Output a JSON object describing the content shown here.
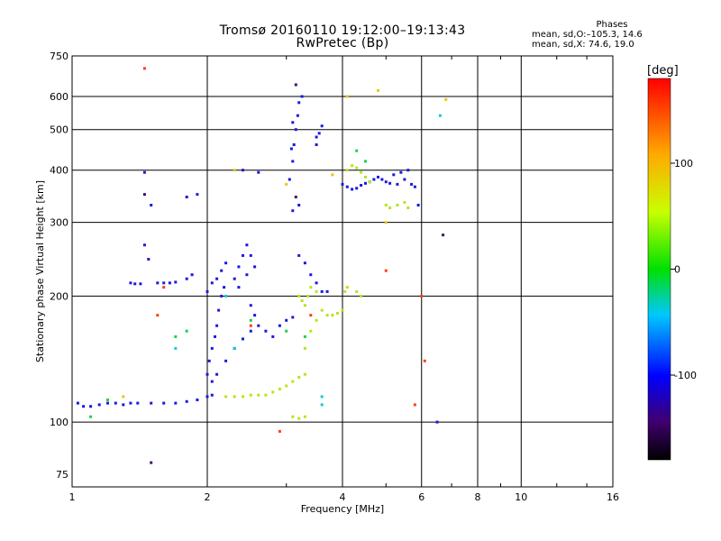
{
  "header": {
    "title": "Tromsø 20160110 19:12:00–19:13:43",
    "subtitle": "RwPretec (Bp)",
    "stats_title": "Phases",
    "stats_o": "mean, sd,O:–105.3, 14.6",
    "stats_x": "mean, sd,X: 74.6, 19.0"
  },
  "chart_data": {
    "type": "scatter",
    "xlabel": "Frequency [MHz]",
    "ylabel": "Stationary phase Virtual Height [km]",
    "xscale": "log",
    "yscale": "log",
    "xlim": [
      1,
      16
    ],
    "ylim": [
      70,
      750
    ],
    "x_ticks": [
      1,
      2,
      4,
      6,
      8,
      10,
      16
    ],
    "x_tick_labels": [
      "1",
      "2",
      "4",
      "6",
      "8",
      "10",
      "16"
    ],
    "y_ticks": [
      75,
      100,
      200,
      300,
      400,
      500,
      600,
      750
    ],
    "y_tick_labels": [
      "75",
      "100",
      "200",
      "300",
      "400",
      "500",
      "600",
      "750"
    ],
    "grid": true,
    "colorbar": {
      "label": "[deg]",
      "ticks": [
        100,
        0,
        -100
      ],
      "tick_labels": [
        "100",
        "0",
        "-100"
      ],
      "range": [
        -180,
        180
      ]
    },
    "series": [
      {
        "phase": -120,
        "color": "#1a1adf",
        "points": [
          [
            1.03,
            111
          ],
          [
            1.06,
            109
          ],
          [
            1.1,
            109
          ],
          [
            1.15,
            110
          ],
          [
            1.2,
            111
          ],
          [
            1.25,
            111
          ],
          [
            1.3,
            110
          ],
          [
            1.35,
            111
          ],
          [
            1.4,
            111
          ],
          [
            1.5,
            111
          ],
          [
            1.6,
            111
          ],
          [
            1.7,
            111
          ],
          [
            1.8,
            112
          ],
          [
            1.9,
            113
          ],
          [
            2.0,
            115
          ],
          [
            2.05,
            116
          ],
          [
            1.35,
            215
          ],
          [
            1.38,
            214
          ],
          [
            1.42,
            214
          ],
          [
            1.55,
            215
          ],
          [
            1.6,
            215
          ],
          [
            1.65,
            215
          ],
          [
            1.7,
            216
          ],
          [
            1.8,
            220
          ],
          [
            1.85,
            225
          ],
          [
            2.0,
            130
          ],
          [
            2.02,
            140
          ],
          [
            2.05,
            150
          ],
          [
            2.08,
            160
          ],
          [
            2.1,
            170
          ],
          [
            2.12,
            185
          ],
          [
            2.15,
            200
          ],
          [
            2.18,
            210
          ],
          [
            2.1,
            220
          ],
          [
            2.15,
            230
          ],
          [
            2.2,
            240
          ],
          [
            2.0,
            205
          ],
          [
            2.05,
            215
          ],
          [
            2.3,
            220
          ],
          [
            2.35,
            235
          ],
          [
            2.4,
            250
          ],
          [
            2.45,
            265
          ],
          [
            2.5,
            250
          ],
          [
            2.55,
            235
          ],
          [
            2.45,
            225
          ],
          [
            2.35,
            210
          ],
          [
            2.5,
            190
          ],
          [
            2.55,
            180
          ],
          [
            2.6,
            170
          ],
          [
            2.7,
            165
          ],
          [
            2.8,
            160
          ],
          [
            2.9,
            170
          ],
          [
            3.0,
            175
          ],
          [
            3.1,
            178
          ],
          [
            2.05,
            125
          ],
          [
            2.1,
            130
          ],
          [
            2.2,
            140
          ],
          [
            2.3,
            150
          ],
          [
            2.4,
            158
          ],
          [
            2.5,
            165
          ],
          [
            3.05,
            380
          ],
          [
            3.1,
            420
          ],
          [
            3.12,
            460
          ],
          [
            3.15,
            500
          ],
          [
            3.18,
            540
          ],
          [
            3.2,
            580
          ],
          [
            3.25,
            600
          ],
          [
            3.1,
            520
          ],
          [
            3.08,
            450
          ],
          [
            3.5,
            460
          ],
          [
            3.55,
            490
          ],
          [
            3.6,
            510
          ],
          [
            3.5,
            480
          ],
          [
            3.2,
            250
          ],
          [
            3.3,
            240
          ],
          [
            3.4,
            225
          ],
          [
            3.5,
            215
          ],
          [
            3.6,
            205
          ],
          [
            3.7,
            205
          ],
          [
            4.0,
            370
          ],
          [
            4.1,
            365
          ],
          [
            4.2,
            360
          ],
          [
            4.3,
            362
          ],
          [
            4.4,
            368
          ],
          [
            4.5,
            372
          ],
          [
            4.6,
            375
          ],
          [
            4.7,
            380
          ],
          [
            4.8,
            385
          ],
          [
            4.9,
            380
          ],
          [
            5.0,
            375
          ],
          [
            5.1,
            372
          ],
          [
            5.3,
            370
          ],
          [
            5.5,
            380
          ],
          [
            5.7,
            370
          ],
          [
            5.8,
            365
          ],
          [
            5.2,
            390
          ],
          [
            5.4,
            395
          ],
          [
            5.6,
            400
          ],
          [
            1.45,
            395
          ],
          [
            1.8,
            345
          ],
          [
            1.9,
            350
          ],
          [
            2.4,
            400
          ],
          [
            2.6,
            395
          ],
          [
            3.2,
            330
          ],
          [
            3.1,
            320
          ],
          [
            1.5,
            330
          ],
          [
            1.45,
            265
          ],
          [
            1.48,
            245
          ],
          [
            6.5,
            100
          ],
          [
            5.9,
            330
          ]
        ]
      },
      {
        "phase": 90,
        "color": "#b4e61a",
        "points": [
          [
            2.2,
            115
          ],
          [
            2.3,
            115
          ],
          [
            2.4,
            115
          ],
          [
            2.5,
            116
          ],
          [
            2.6,
            116
          ],
          [
            2.7,
            116
          ],
          [
            2.8,
            118
          ],
          [
            2.9,
            120
          ],
          [
            3.0,
            122
          ],
          [
            3.1,
            125
          ],
          [
            3.2,
            128
          ],
          [
            3.3,
            130
          ],
          [
            3.2,
            200
          ],
          [
            3.25,
            195
          ],
          [
            3.3,
            190
          ],
          [
            3.35,
            200
          ],
          [
            3.4,
            210
          ],
          [
            3.5,
            205
          ],
          [
            3.6,
            185
          ],
          [
            3.7,
            180
          ],
          [
            3.8,
            180
          ],
          [
            3.9,
            182
          ],
          [
            4.0,
            185
          ],
          [
            4.05,
            205
          ],
          [
            4.1,
            210
          ],
          [
            4.3,
            205
          ],
          [
            4.4,
            200
          ],
          [
            3.5,
            175
          ],
          [
            3.4,
            165
          ],
          [
            3.3,
            150
          ],
          [
            3.1,
            103
          ],
          [
            3.2,
            102
          ],
          [
            3.3,
            103
          ],
          [
            4.1,
            400
          ],
          [
            4.2,
            410
          ],
          [
            4.3,
            405
          ],
          [
            4.4,
            395
          ],
          [
            4.5,
            385
          ],
          [
            4.6,
            375
          ],
          [
            5.0,
            330
          ],
          [
            5.1,
            325
          ],
          [
            5.3,
            330
          ],
          [
            5.5,
            335
          ],
          [
            5.6,
            325
          ]
        ]
      },
      {
        "phase": 120,
        "color": "#e6c814",
        "points": [
          [
            1.3,
            115
          ],
          [
            2.3,
            400
          ],
          [
            3.8,
            390
          ],
          [
            4.8,
            620
          ],
          [
            6.8,
            590
          ],
          [
            3.0,
            370
          ],
          [
            4.1,
            600
          ],
          [
            5.0,
            300
          ]
        ]
      },
      {
        "phase": 10,
        "color": "#1ad24b",
        "points": [
          [
            1.2,
            113
          ],
          [
            1.7,
            160
          ],
          [
            1.8,
            165
          ],
          [
            2.5,
            175
          ],
          [
            3.3,
            160
          ],
          [
            3.0,
            165
          ],
          [
            4.5,
            420
          ],
          [
            4.3,
            445
          ],
          [
            1.1,
            103
          ]
        ]
      },
      {
        "phase": 160,
        "color": "#ff4010",
        "points": [
          [
            1.45,
            700
          ],
          [
            1.55,
            180
          ],
          [
            2.5,
            170
          ],
          [
            3.4,
            180
          ],
          [
            5.8,
            110
          ],
          [
            6.0,
            200
          ],
          [
            6.1,
            140
          ],
          [
            5.0,
            230
          ],
          [
            1.6,
            210
          ],
          [
            2.9,
            95
          ]
        ]
      },
      {
        "phase": -40,
        "color": "#14c8dc",
        "points": [
          [
            1.7,
            150
          ],
          [
            2.3,
            150
          ],
          [
            3.6,
            115
          ],
          [
            3.6,
            110
          ],
          [
            6.6,
            540
          ],
          [
            2.2,
            200
          ]
        ]
      },
      {
        "phase": -160,
        "color": "#401070",
        "points": [
          [
            1.5,
            80
          ],
          [
            1.45,
            350
          ],
          [
            6.7,
            280
          ],
          [
            3.15,
            640
          ],
          [
            3.15,
            345
          ]
        ]
      }
    ]
  }
}
